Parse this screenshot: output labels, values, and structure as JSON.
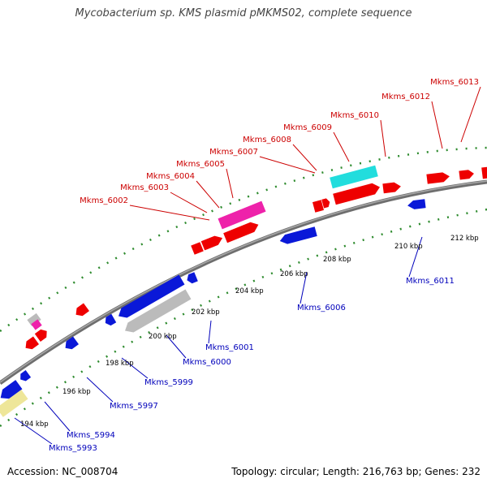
{
  "title": "Mycobacterium sp. KMS plasmid pMKMS02, complete sequence",
  "footer": {
    "accession": "Accession: NC_008704",
    "summary": "Topology: circular; Length: 216,763 bp; Genes: 232"
  },
  "colors": {
    "backbone": "#6e6e6e",
    "dots": "#2e8b2e",
    "forward_label": "#cc0000",
    "reverse_label": "#0000bb",
    "red": "#ee0000",
    "blue": "#0a18d8",
    "magenta": "#ee22aa",
    "cyan": "#22dddd",
    "gray": "#bbbbbb",
    "yellow": "#eee699"
  },
  "scale_labels": [
    "194 kbp",
    "196 kbp",
    "198 kbp",
    "200 kbp",
    "202 kbp",
    "204 kbp",
    "206 kbp",
    "208 kbp",
    "210 kbp",
    "212 kbp"
  ],
  "forward_gene_labels": [
    "Mkms_6002",
    "Mkms_6003",
    "Mkms_6004",
    "Mkms_6005",
    "Mkms_6007",
    "Mkms_6008",
    "Mkms_6009",
    "Mkms_6010",
    "Mkms_6012",
    "Mkms_6013"
  ],
  "reverse_gene_labels": [
    "Mkms_5993",
    "Mkms_5994",
    "Mkms_5997",
    "Mkms_5999",
    "Mkms_6000",
    "Mkms_6001",
    "Mkms_6006",
    "Mkms_6011"
  ]
}
